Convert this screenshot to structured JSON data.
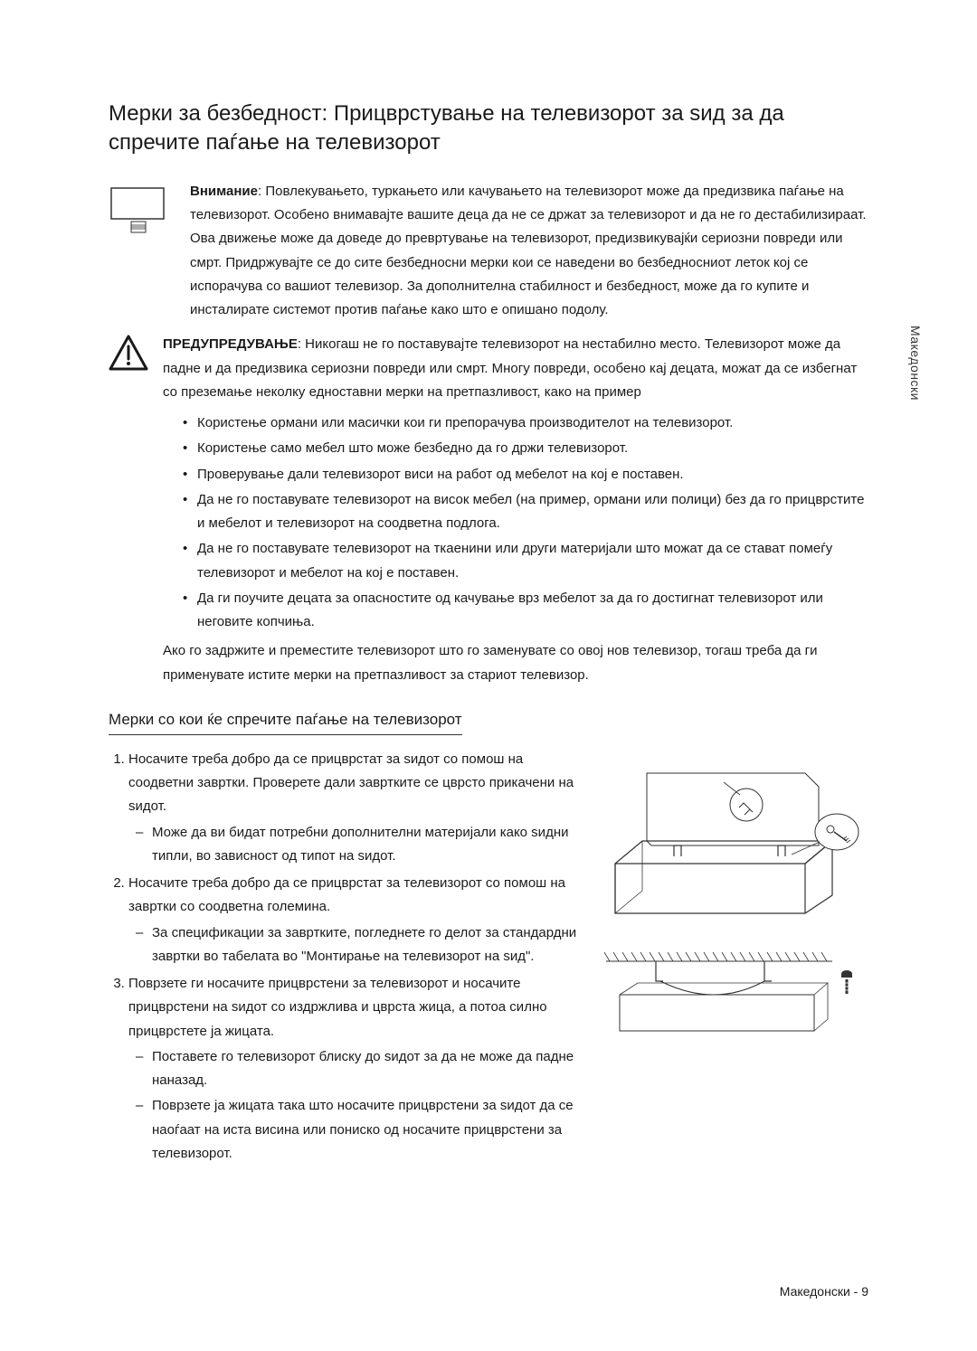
{
  "title": "Мерки за безбедност: Прицврстување на телевизорот за ѕид за да спречите паѓање на телевизорот",
  "attention": {
    "label": "Внимание",
    "text": ": Повлекувањето, туркањето или качувањето на телевизорот може да предизвика паѓање на телевизорот. Особено внимавајте вашите деца да не се држат за телевизорот и да не го дестабилизираат. Ова движење може да доведе до превртување на телевизорот, предизвикувајќи сериозни повреди или смрт. Придржувајте се до сите безбедносни мерки кои се наведени во безбедносниот леток кој се испорачува со вашиот телевизор. За дополнителна стабилност и безбедност, може да го купите и инсталирате системот против паѓање како што е опишано подолу."
  },
  "warning": {
    "label": "ПРЕДУПРЕДУВАЊЕ",
    "lead": ": Никогаш не го поставувајте телевизорот на нестабилно место. Телевизорот може да падне и да предизвика сериозни повреди или смрт. Многу повреди, особено кај децата, можат да се избегнат со преземање неколку едноставни мерки на претпазливост, како на пример",
    "bullets": [
      "Користење ормани или масички кои ги препорачува производителот на телевизорот.",
      "Користење само мебел што може безбедно да го држи телевизорот.",
      "Проверување дали телевизорот виси на работ од мебелот на кој е поставен.",
      "Да не го поставувате телевизорот на висок мебел (на пример, ормани или полици) без да го прицврстите и мебелот и телевизорот на соодветна подлога.",
      "Да не го поставувате телевизорот на ткаенини или други материјали што можат да се стават помеѓу телевизорот и мебелот на кој е поставен.",
      "Да ги поучите децата за опасностите од качување врз мебелот за да го достигнат телевизорот или неговите копчиња."
    ],
    "tail": "Ако го задржите и преместите телевизорот што го заменувате со овој нов телевизор, тогаш треба да ги применувате истите мерки на претпазливост за стариот телевизор."
  },
  "sub_heading": "Мерки со кои ќе спречите паѓање на телевизорот",
  "steps": [
    {
      "text": "Носачите треба добро да се прицврстат за ѕидот со помош на соодветни завртки. Проверете дали завртките се цврсто прикачени на ѕидот.",
      "sub": [
        "Може да ви бидат потребни дополнителни материјали како ѕидни типли, во зависност од типот на ѕидот."
      ]
    },
    {
      "text": "Носачите треба добро да се прицврстат за телевизорот со помош на завртки со соодветна големина.",
      "sub": [
        "За спецификации за завртките, погледнете го делот за стандардни завртки во табелата во \"Монтирање на телевизорот на ѕид\"."
      ]
    },
    {
      "text": "Поврзете ги носачите прицврстени за телевизорот и носачите прицврстени на ѕидот со издржлива и цврста жица, а потоа силно прицврстете ја жицата.",
      "sub": [
        "Поставете го телевизорот блиску до ѕидот за да не може да падне наназад.",
        "Поврзете ја жицата така што носачите прицврстени за ѕидот да се наоѓаат на иста висина или пониско од носачите прицврстени за телевизорот."
      ]
    }
  ],
  "side_tab": "Македонски",
  "footer": "Македонски - 9"
}
